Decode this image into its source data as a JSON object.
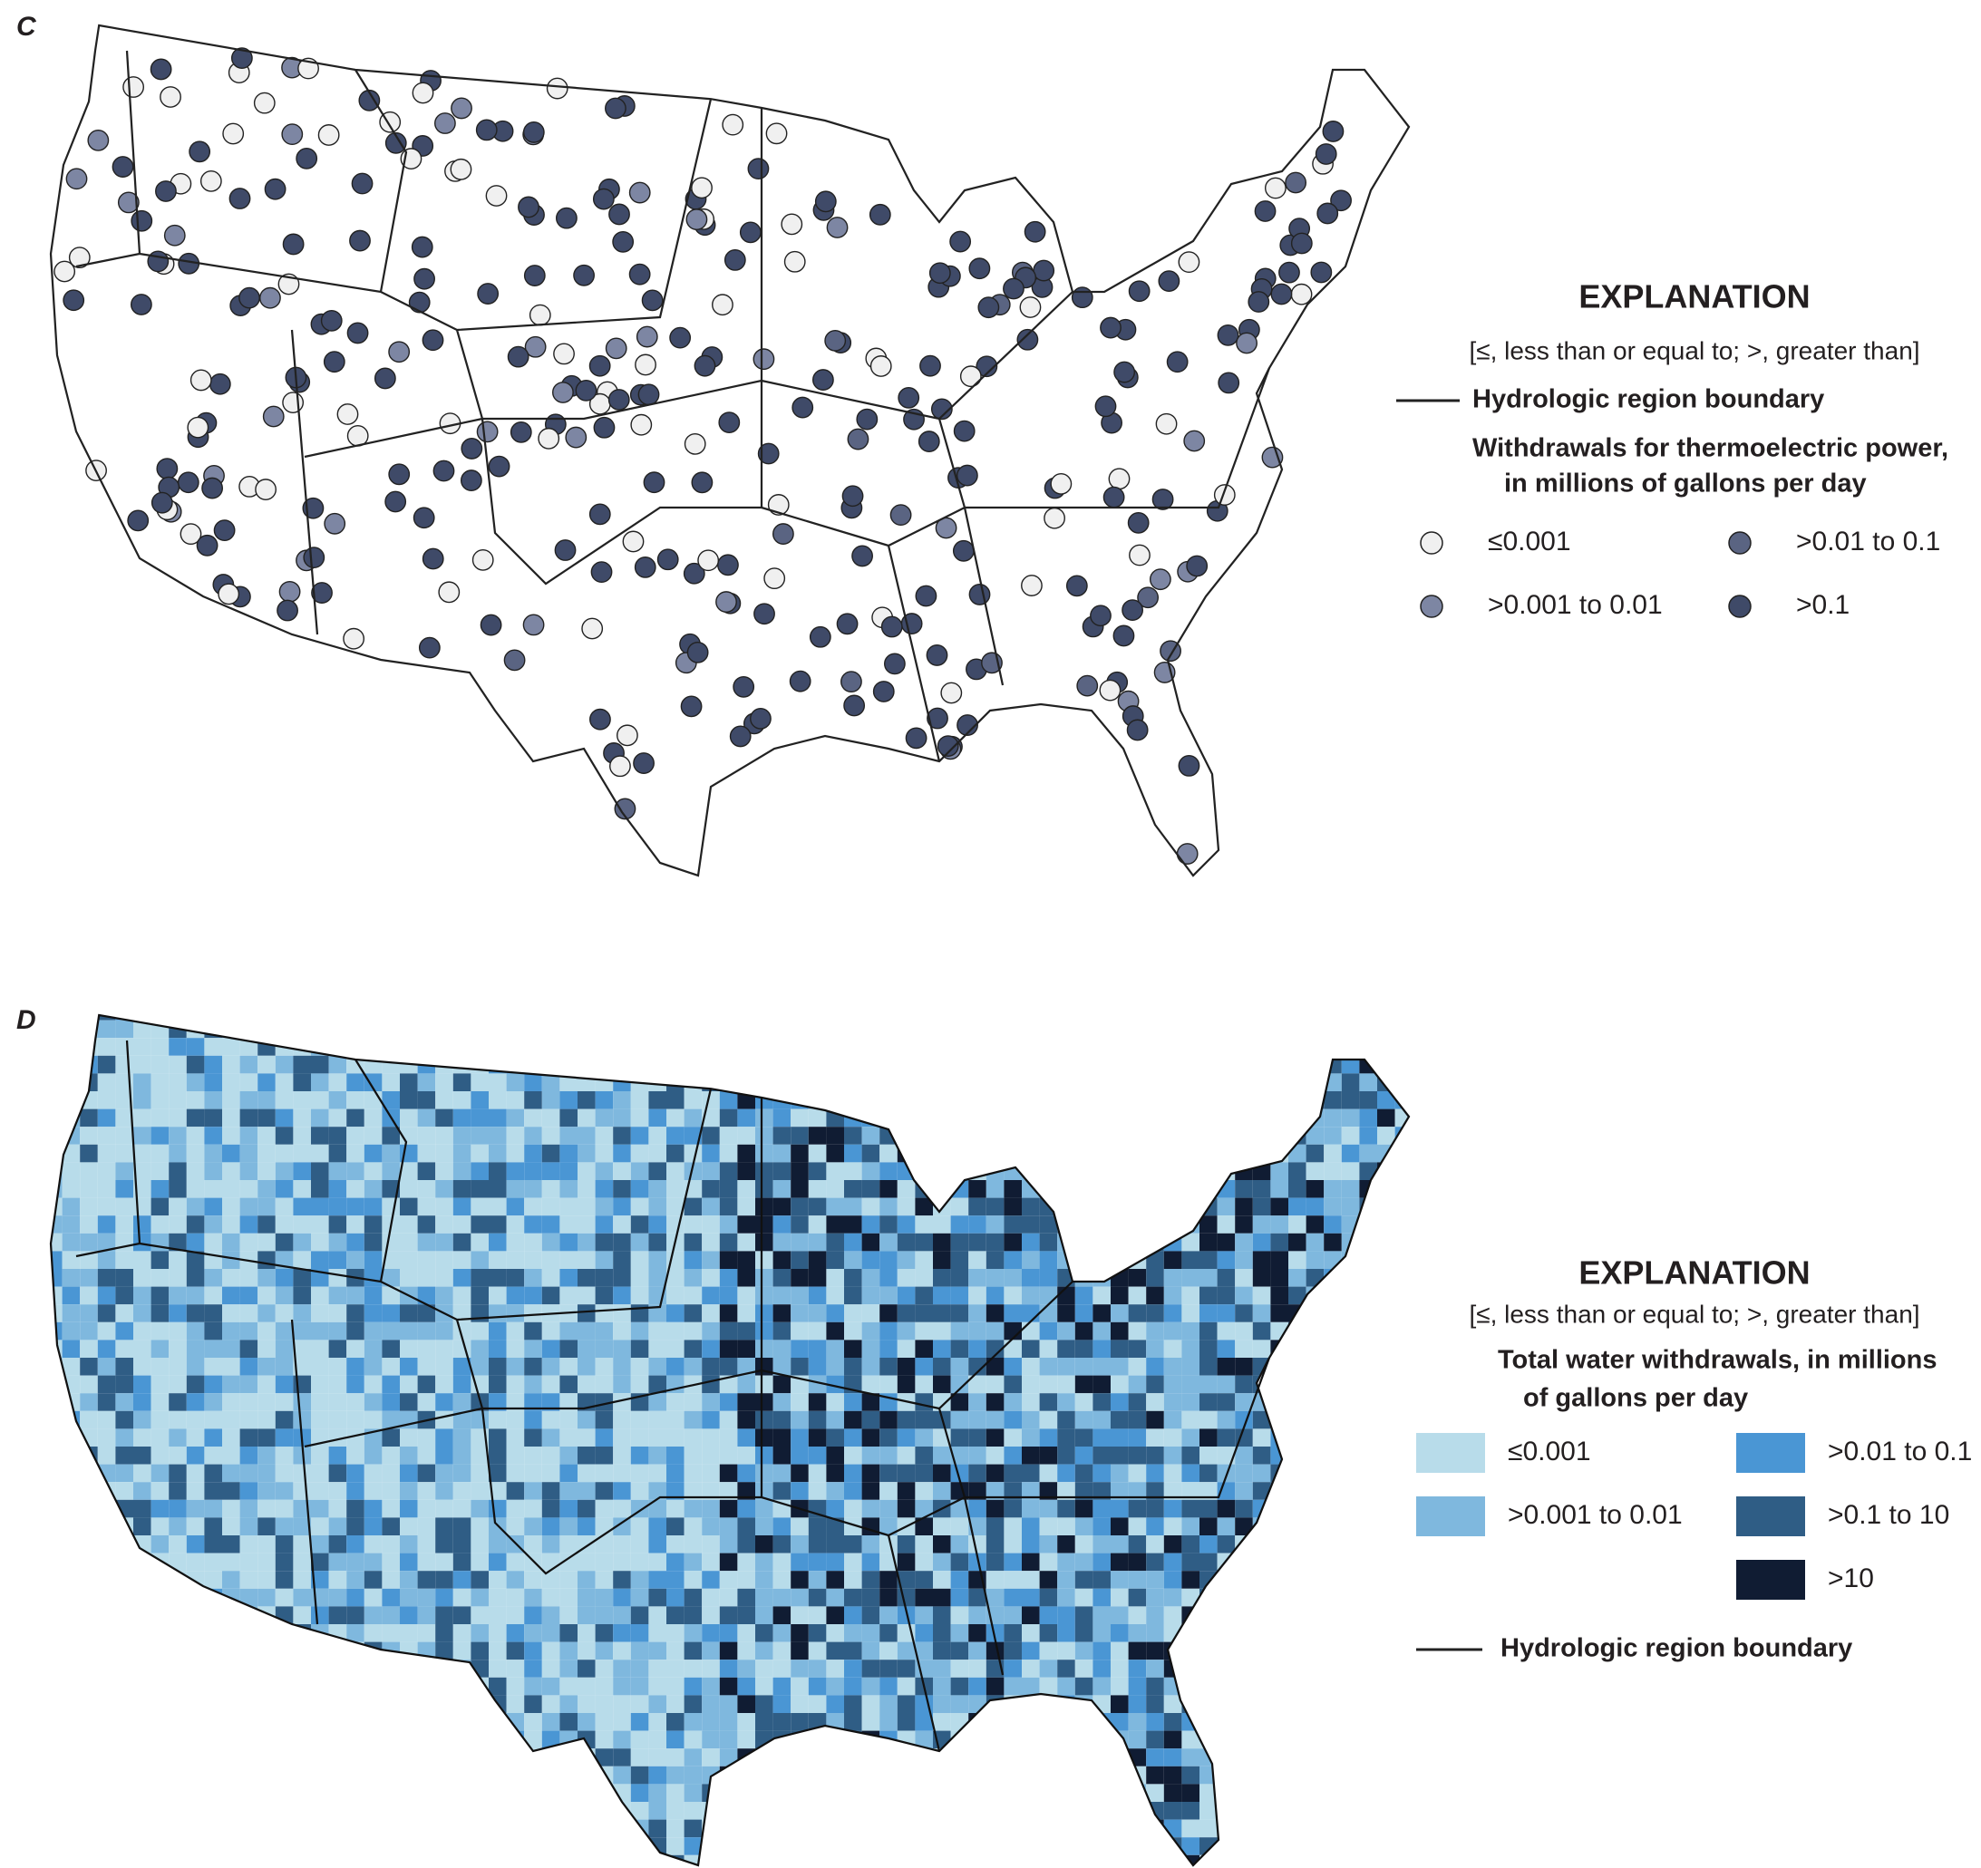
{
  "panels": [
    {
      "label": "C",
      "legend": {
        "title": "EXPLANATION",
        "note": "[≤, less than or equal to; >, greater than]",
        "boundary": "Hydrologic region boundary",
        "heading": [
          "Withdrawals for thermoelectric power,",
          "in millions of gallons per day"
        ],
        "classes": [
          {
            "label": "≤0.001",
            "color": "#f0f0f0"
          },
          {
            "label": ">0.001 to 0.01",
            "color": "#7d86a3"
          },
          {
            "label": ">0.01 to 0.1",
            "color": "#5a6482"
          },
          {
            "label": ">0.1",
            "color": "#3f4a68"
          }
        ]
      }
    },
    {
      "label": "D",
      "legend": {
        "title": "EXPLANATION",
        "note": "[≤, less than or equal to; >, greater than]",
        "heading": [
          "Total water withdrawals, in millions",
          "of gallons per day"
        ],
        "classes": [
          {
            "label": "≤0.001",
            "color": "#b8dcea"
          },
          {
            "label": ">0.001 to 0.01",
            "color": "#7fb8de"
          },
          {
            "label": ">0.01 to 0.1",
            "color": "#4a96d4"
          },
          {
            "label": ">0.1 to 10",
            "color": "#2f5d85"
          },
          {
            "label": ">10",
            "color": "#101c33"
          }
        ],
        "boundary": "Hydrologic region boundary"
      }
    }
  ]
}
